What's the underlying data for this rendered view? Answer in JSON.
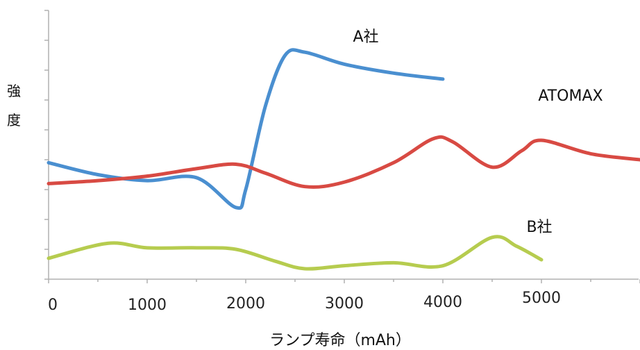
{
  "chart_data": {
    "type": "line",
    "xlabel": "ランプ寿命（mAh）",
    "ylabel": "強度",
    "y_tick_count": 9,
    "xlim": [
      0,
      6000
    ],
    "ylim": [
      0,
      9
    ],
    "x_ticks": [
      {
        "label": "0",
        "value": 0
      },
      {
        "label": "1000",
        "value": 1000
      },
      {
        "label": "2000",
        "value": 2000
      },
      {
        "label": "3000",
        "value": 3000
      },
      {
        "label": "4000",
        "value": 4000
      },
      {
        "label": "5000",
        "value": 5000
      }
    ],
    "series": [
      {
        "name": "A社",
        "color": "#4a8fd0",
        "x": [
          0,
          500,
          1000,
          1500,
          1900,
          2000,
          2200,
          2400,
          2600,
          3000,
          3500,
          4000
        ],
        "y": [
          3.9,
          3.5,
          3.3,
          3.4,
          2.4,
          3.0,
          5.8,
          7.5,
          7.6,
          7.2,
          6.9,
          6.7
        ]
      },
      {
        "name": "ATOMAX",
        "color": "#d84a43",
        "x": [
          0,
          500,
          1000,
          1500,
          1900,
          2200,
          2600,
          3000,
          3500,
          3900,
          4100,
          4500,
          4800,
          5000,
          5500,
          6000
        ],
        "y": [
          3.2,
          3.3,
          3.45,
          3.7,
          3.85,
          3.55,
          3.1,
          3.25,
          3.9,
          4.7,
          4.6,
          3.75,
          4.3,
          4.65,
          4.2,
          4.0
        ]
      },
      {
        "name": "B社",
        "color": "#b6cc4f",
        "x": [
          0,
          600,
          1000,
          1500,
          1900,
          2300,
          2600,
          3000,
          3500,
          4000,
          4500,
          4750,
          5000
        ],
        "y": [
          0.7,
          1.2,
          1.05,
          1.05,
          1.0,
          0.6,
          0.35,
          0.45,
          0.55,
          0.45,
          1.4,
          1.1,
          0.65
        ]
      }
    ]
  }
}
